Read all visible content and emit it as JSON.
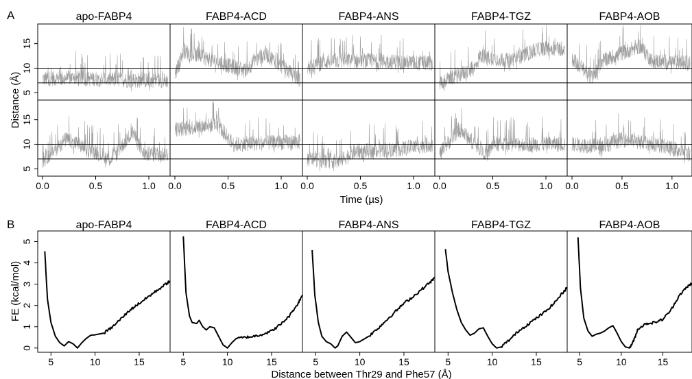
{
  "chart_data": [
    {
      "panel": "A",
      "type": "line",
      "panel_titles": [
        "apo-FABP4",
        "FABP4-ACD",
        "FABP4-ANS",
        "FABP4-TGZ",
        "FABP4-AOB"
      ],
      "xlabel": "Time (µs)",
      "ylabel": "Distance (Å)",
      "xlim": [
        0,
        1.2
      ],
      "ylim": [
        3.5,
        19
      ],
      "xticks": [
        "0.0",
        "0.5",
        "1.0"
      ],
      "yticks": [
        "5",
        "10",
        "15"
      ],
      "reference_lines_y": [
        7,
        10
      ],
      "line_color": "#9e9e9e",
      "rows": [
        [
          {
            "name": "apo-FABP4 run 1",
            "segments": [
              [
                0.0,
                7.8
              ],
              [
                0.25,
                8.0
              ],
              [
                0.9,
                7.5
              ],
              [
                1.18,
                7.5
              ]
            ]
          },
          {
            "name": "FABP4-ACD run 1",
            "segments": [
              [
                0.0,
                8.5
              ],
              [
                0.08,
                13.5
              ],
              [
                0.65,
                9.5
              ],
              [
                0.85,
                13.0
              ],
              [
                1.18,
                7.5
              ]
            ]
          },
          {
            "name": "FABP4-ANS run 1",
            "segments": [
              [
                0.0,
                10.0
              ],
              [
                0.2,
                11.5
              ],
              [
                0.55,
                11.5
              ],
              [
                1.18,
                11.0
              ]
            ]
          },
          {
            "name": "FABP4-TGZ run 1",
            "segments": [
              [
                0.0,
                7.0
              ],
              [
                0.33,
                10.0
              ],
              [
                0.38,
                12.5
              ],
              [
                0.65,
                11.5
              ],
              [
                0.95,
                14.0
              ],
              [
                1.18,
                14.0
              ]
            ]
          },
          {
            "name": "FABP4-AOB run 1",
            "segments": [
              [
                0.0,
                12.0
              ],
              [
                0.2,
                8.0
              ],
              [
                0.3,
                11.5
              ],
              [
                0.68,
                14.5
              ],
              [
                0.8,
                11.5
              ],
              [
                1.18,
                11.0
              ]
            ]
          }
        ],
        [
          {
            "name": "apo-FABP4 run 2",
            "segments": [
              [
                0.0,
                6.5
              ],
              [
                0.22,
                11.0
              ],
              [
                0.65,
                7.0
              ],
              [
                0.85,
                12.5
              ],
              [
                0.95,
                8.0
              ],
              [
                1.18,
                8.0
              ]
            ]
          },
          {
            "name": "FABP4-ACD run 2",
            "segments": [
              [
                0.0,
                13.0
              ],
              [
                0.4,
                14.0
              ],
              [
                0.55,
                10.0
              ],
              [
                1.18,
                10.5
              ]
            ]
          },
          {
            "name": "FABP4-ANS run 2",
            "segments": [
              [
                0.0,
                7.0
              ],
              [
                0.3,
                6.5
              ],
              [
                0.45,
                8.5
              ],
              [
                0.85,
                9.0
              ],
              [
                1.18,
                10.0
              ]
            ]
          },
          {
            "name": "FABP4-TGZ run 2",
            "segments": [
              [
                0.0,
                8.0
              ],
              [
                0.18,
                13.0
              ],
              [
                0.45,
                8.0
              ],
              [
                0.5,
                10.0
              ],
              [
                1.18,
                10.0
              ]
            ]
          },
          {
            "name": "FABP4-AOB run 2",
            "segments": [
              [
                0.0,
                10.0
              ],
              [
                0.3,
                9.5
              ],
              [
                0.5,
                11.0
              ],
              [
                0.85,
                10.0
              ],
              [
                1.18,
                8.0
              ]
            ]
          }
        ]
      ]
    },
    {
      "panel": "B",
      "type": "line",
      "panel_titles": [
        "apo-FABP4",
        "FABP4-ACD",
        "FABP4-ANS",
        "FABP4-TGZ",
        "FABP4-AOB"
      ],
      "xlabel": "Distance between Thr29 and Phe57 (Å)",
      "ylabel": "FE (kcal/mol)",
      "xlim": [
        3.5,
        18.5
      ],
      "ylim": [
        -0.2,
        5.5
      ],
      "xticks": [
        "5",
        "10",
        "15"
      ],
      "yticks": [
        "0",
        "1",
        "2",
        "3",
        "4",
        "5"
      ],
      "line_color": "#000000",
      "series": [
        {
          "name": "apo-FABP4",
          "x": [
            4.3,
            4.6,
            5.0,
            5.5,
            6.0,
            6.5,
            7.0,
            7.5,
            8.0,
            8.5,
            9.0,
            9.5,
            10.0,
            11.0,
            12.0,
            13.0,
            14.0,
            15.0,
            16.0,
            17.0,
            18.0,
            18.5
          ],
          "y": [
            4.55,
            2.3,
            1.2,
            0.55,
            0.25,
            0.1,
            0.3,
            0.2,
            0.0,
            0.25,
            0.45,
            0.6,
            0.62,
            0.7,
            1.0,
            1.4,
            1.8,
            2.1,
            2.4,
            2.7,
            3.0,
            3.15
          ]
        },
        {
          "name": "FABP4-ACD",
          "x": [
            5.0,
            5.3,
            5.7,
            6.0,
            6.5,
            6.8,
            7.2,
            7.6,
            8.0,
            8.5,
            9.0,
            9.5,
            10.0,
            10.5,
            11.0,
            12.0,
            13.0,
            14.0,
            15.0,
            16.0,
            17.0,
            18.0,
            18.5
          ],
          "y": [
            5.25,
            2.6,
            1.5,
            1.2,
            1.15,
            1.3,
            1.0,
            0.85,
            1.0,
            0.95,
            0.55,
            0.15,
            0.0,
            0.25,
            0.45,
            0.5,
            0.55,
            0.65,
            0.8,
            1.1,
            1.5,
            2.1,
            2.5
          ]
        },
        {
          "name": "FABP4-ANS",
          "x": [
            4.6,
            4.9,
            5.3,
            5.7,
            6.2,
            6.7,
            7.2,
            7.5,
            8.0,
            8.5,
            9.0,
            9.5,
            10.0,
            11.0,
            12.0,
            13.0,
            14.0,
            15.0,
            16.0,
            17.0,
            18.0,
            18.5
          ],
          "y": [
            4.6,
            2.5,
            1.2,
            0.55,
            0.3,
            0.2,
            0.0,
            0.1,
            0.55,
            0.75,
            0.5,
            0.25,
            0.3,
            0.55,
            0.9,
            1.3,
            1.7,
            2.1,
            2.4,
            2.75,
            3.1,
            3.3
          ]
        },
        {
          "name": "FABP4-TGZ",
          "x": [
            4.7,
            5.0,
            5.5,
            6.0,
            6.5,
            7.0,
            7.5,
            8.0,
            8.5,
            9.0,
            9.5,
            10.0,
            10.5,
            11.0,
            12.0,
            13.0,
            14.0,
            15.0,
            16.0,
            17.0,
            18.0,
            18.5
          ],
          "y": [
            4.65,
            3.6,
            2.6,
            1.8,
            1.2,
            0.85,
            0.6,
            0.7,
            0.9,
            0.95,
            0.55,
            0.2,
            0.0,
            0.05,
            0.4,
            0.8,
            1.1,
            1.4,
            1.7,
            2.1,
            2.6,
            2.85
          ]
        },
        {
          "name": "FABP4-AOB",
          "x": [
            4.8,
            5.1,
            5.5,
            6.0,
            6.5,
            7.0,
            7.5,
            8.0,
            8.5,
            9.0,
            9.5,
            10.0,
            10.5,
            11.0,
            11.5,
            12.0,
            13.0,
            14.0,
            15.0,
            16.0,
            17.0,
            18.0,
            18.5
          ],
          "y": [
            5.2,
            2.8,
            1.4,
            0.8,
            0.55,
            0.65,
            0.7,
            0.8,
            0.95,
            1.05,
            0.7,
            0.3,
            0.05,
            0.0,
            0.35,
            0.9,
            1.15,
            1.2,
            1.35,
            1.8,
            2.5,
            2.9,
            3.05
          ]
        }
      ]
    }
  ]
}
